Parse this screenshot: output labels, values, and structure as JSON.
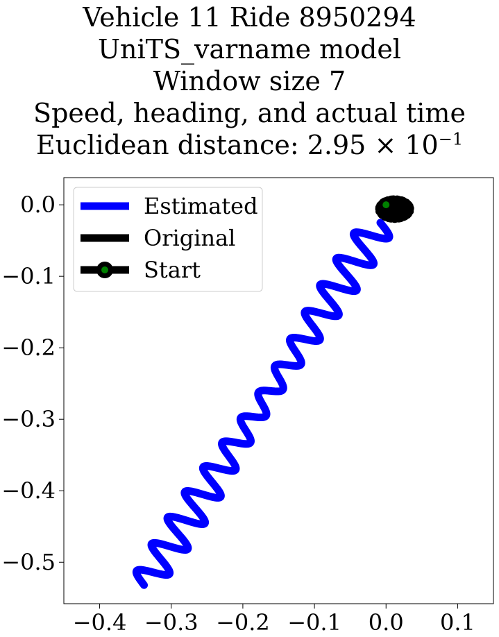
{
  "chart_data": {
    "type": "line",
    "title_lines": [
      "Vehicle 11 Ride 8950294",
      "UniTS_varname model",
      "Window size 7",
      "Speed, heading, and actual time"
    ],
    "distance_label": "Euclidean distance: ",
    "distance_mantissa": "2.95",
    "distance_times": "×",
    "distance_base": "10",
    "distance_exponent": "−1",
    "xlim": [
      -0.45,
      0.15
    ],
    "ylim": [
      -0.558,
      0.038
    ],
    "x_ticks": [
      -0.4,
      -0.3,
      -0.2,
      -0.1,
      0.0,
      0.1
    ],
    "x_tick_labels": [
      "−0.4",
      "−0.3",
      "−0.2",
      "−0.1",
      "0.0",
      "0.1"
    ],
    "y_ticks": [
      0.0,
      -0.1,
      -0.2,
      -0.3,
      -0.4,
      -0.5
    ],
    "y_tick_labels": [
      "0.0",
      "−0.1",
      "−0.2",
      "−0.3",
      "−0.4",
      "−0.5"
    ],
    "grid": false,
    "legend_position": "top-left",
    "legend": [
      {
        "name": "Estimated",
        "color": "#0000ff",
        "style": "line"
      },
      {
        "name": "Original",
        "color": "#000000",
        "style": "line"
      },
      {
        "name": "Start",
        "color": "#000000",
        "marker_color": "#008000",
        "style": "line-marker"
      }
    ],
    "estimated": {
      "name": "Estimated",
      "color": "#0000ff",
      "start": [
        -0.338,
        -0.532
      ],
      "end": [
        -0.008,
        -0.025
      ],
      "wave_amplitude": 0.022,
      "wave_cycles": 14
    },
    "original": {
      "name": "Original",
      "color": "#000000",
      "center": [
        0.012,
        -0.006
      ],
      "radius_x": 0.022,
      "radius_y": 0.014
    },
    "start": {
      "name": "Start",
      "x": 0.0,
      "y": 0.0,
      "color": "#008000"
    }
  }
}
